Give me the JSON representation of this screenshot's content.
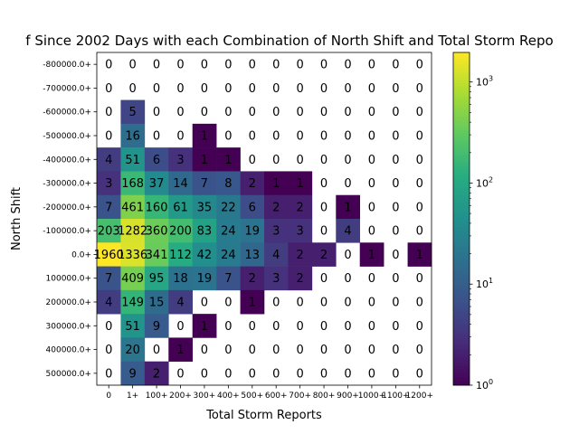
{
  "chart_data": {
    "type": "heatmap",
    "title": "f Since 2002 Days with each Combination of North Shift and Total Storm Repo",
    "xlabel": "Total Storm Reports",
    "ylabel": "North Shift",
    "x_categories": [
      "0",
      "1+",
      "100+",
      "200+",
      "300+",
      "400+",
      "500+",
      "600+",
      "700+",
      "800+",
      "900+",
      "1000+",
      "1100+",
      "1200+"
    ],
    "y_categories": [
      "-800000.0+",
      "-700000.0+",
      "-600000.0+",
      "-500000.0+",
      "-400000.0+",
      "-300000.0+",
      "-200000.0+",
      "-100000.0+",
      "0.0+",
      "100000.0+",
      "200000.0+",
      "300000.0+",
      "400000.0+",
      "500000.0+"
    ],
    "values": [
      [
        0,
        0,
        0,
        0,
        0,
        0,
        0,
        0,
        0,
        0,
        0,
        0,
        0,
        0
      ],
      [
        0,
        0,
        0,
        0,
        0,
        0,
        0,
        0,
        0,
        0,
        0,
        0,
        0,
        0
      ],
      [
        0,
        5,
        0,
        0,
        0,
        0,
        0,
        0,
        0,
        0,
        0,
        0,
        0,
        0
      ],
      [
        0,
        16,
        0,
        0,
        1,
        0,
        0,
        0,
        0,
        0,
        0,
        0,
        0,
        0
      ],
      [
        4,
        51,
        6,
        3,
        1,
        1,
        0,
        0,
        0,
        0,
        0,
        0,
        0,
        0
      ],
      [
        3,
        168,
        37,
        14,
        7,
        8,
        2,
        1,
        1,
        0,
        0,
        0,
        0,
        0
      ],
      [
        7,
        461,
        160,
        61,
        35,
        22,
        6,
        2,
        2,
        0,
        1,
        0,
        0,
        0
      ],
      [
        203,
        1282,
        360,
        200,
        83,
        24,
        19,
        3,
        3,
        0,
        4,
        0,
        0,
        0
      ],
      [
        1960,
        1336,
        341,
        112,
        42,
        24,
        13,
        4,
        2,
        2,
        0,
        1,
        0,
        1
      ],
      [
        7,
        409,
        95,
        18,
        19,
        7,
        2,
        3,
        2,
        0,
        0,
        0,
        0,
        0
      ],
      [
        4,
        149,
        15,
        4,
        0,
        0,
        1,
        0,
        0,
        0,
        0,
        0,
        0,
        0
      ],
      [
        0,
        51,
        9,
        0,
        1,
        0,
        0,
        0,
        0,
        0,
        0,
        0,
        0,
        0
      ],
      [
        0,
        20,
        0,
        1,
        0,
        0,
        0,
        0,
        0,
        0,
        0,
        0,
        0,
        0
      ],
      [
        0,
        9,
        2,
        0,
        0,
        0,
        0,
        0,
        0,
        0,
        0,
        0,
        0,
        0
      ]
    ],
    "color_scale": "log",
    "colormap": "viridis",
    "zero_color": "#ffffff",
    "colorbar_range": [
      1,
      1960
    ],
    "colorbar_ticks": [
      {
        "value": 1,
        "base": "10",
        "exp": "0"
      },
      {
        "value": 10,
        "base": "10",
        "exp": "1"
      },
      {
        "value": 100,
        "base": "10",
        "exp": "2"
      },
      {
        "value": 1000,
        "base": "10",
        "exp": "3"
      }
    ],
    "grid": false
  }
}
